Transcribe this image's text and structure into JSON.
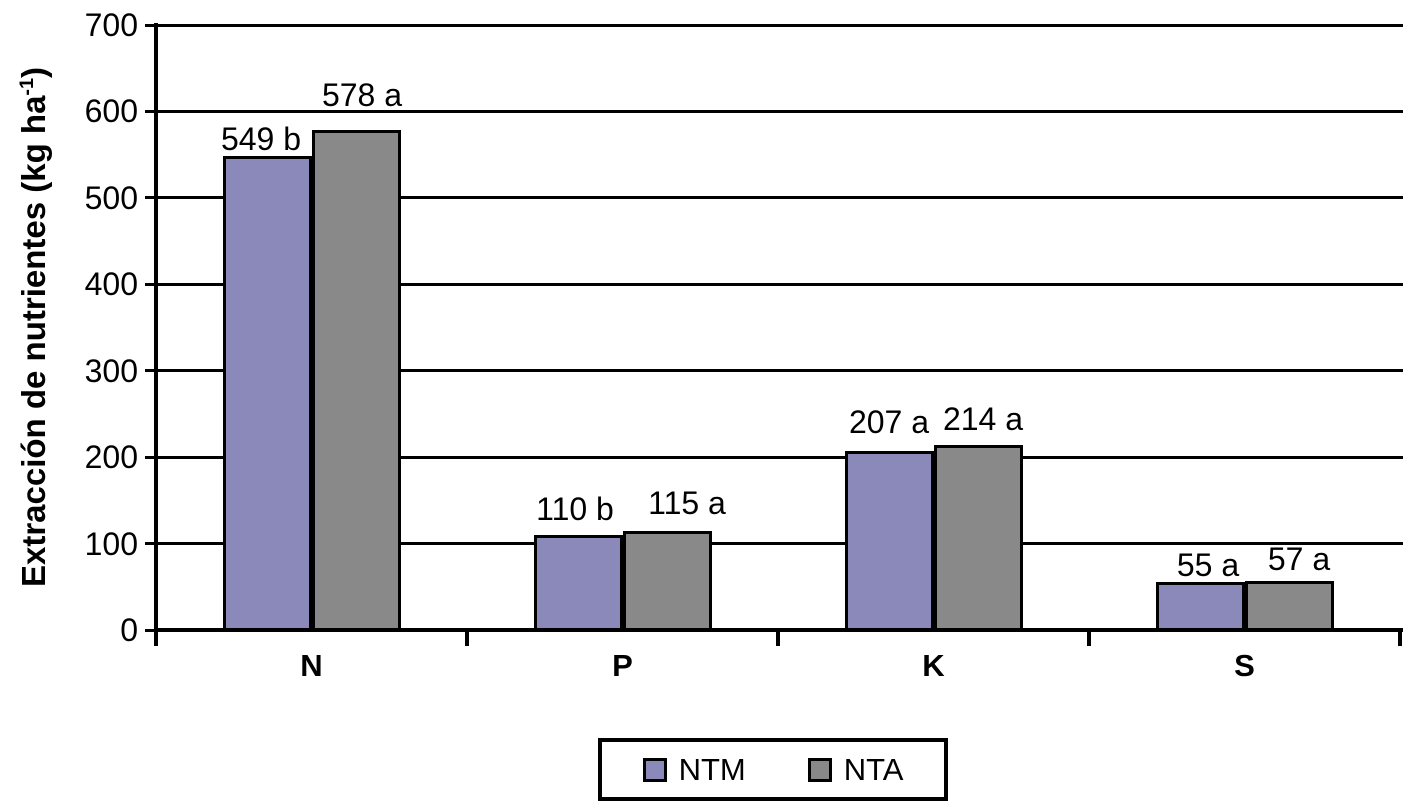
{
  "chart_data": {
    "type": "bar",
    "title": "",
    "ylabel": {
      "prefix": "Extracción de nutrientes (kg ha",
      "superscript": "-1",
      "suffix": ")",
      "plain": "Extracción de nutrientes (kg ha-1)"
    },
    "categories": [
      "N",
      "P",
      "K",
      "S"
    ],
    "series": [
      {
        "name": "NTM",
        "color": "#8B89BA",
        "values": [
          549,
          110,
          207,
          55
        ],
        "point_labels": [
          "549 b",
          "110 b",
          "207 a",
          "55 a"
        ]
      },
      {
        "name": "NTA",
        "color": "#898989",
        "values": [
          578,
          115,
          214,
          57
        ],
        "point_labels": [
          "578 a",
          "115 a",
          "214 a",
          "57 a"
        ]
      }
    ],
    "ylim": [
      0,
      700
    ],
    "yticks": [
      0,
      100,
      200,
      300,
      400,
      500,
      600,
      700
    ],
    "grid": true,
    "legend_position": "bottom-center",
    "axis_color": "#000000",
    "bar_border_color": "#000000",
    "background": "#FFFFFF"
  }
}
